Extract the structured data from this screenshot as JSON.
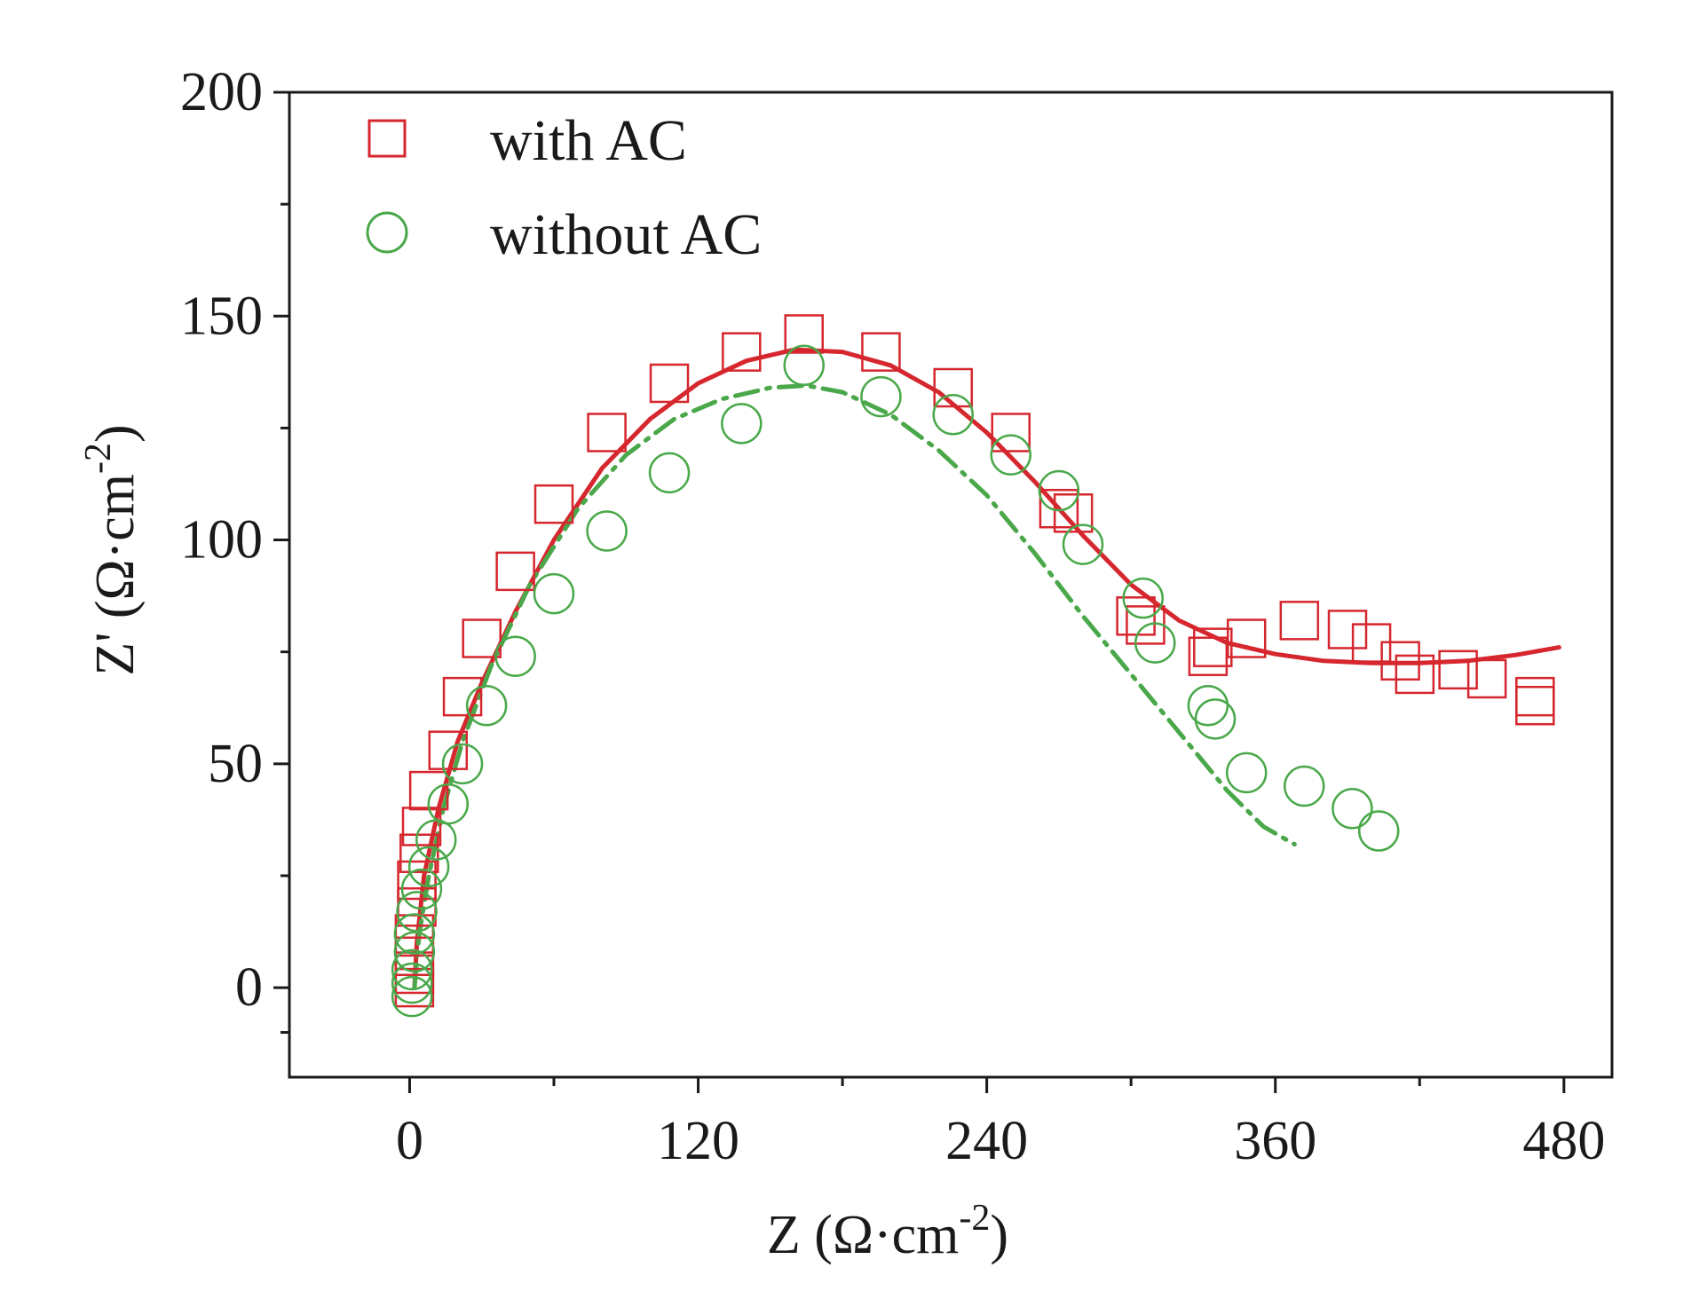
{
  "chart_data": {
    "type": "scatter",
    "title": "",
    "xlabel": "Z (Ω·cm",
    "xlabel_sup": "-2",
    "xlabel_close": ")",
    "ylabel": "Z' (Ω·cm",
    "ylabel_sup": "-2",
    "ylabel_close": ")",
    "xlim": [
      -50,
      500
    ],
    "ylim": [
      -20,
      200
    ],
    "xticks": [
      0,
      120,
      240,
      360,
      480
    ],
    "yticks": [
      0,
      50,
      100,
      150,
      200
    ],
    "xtick_labels": [
      "0",
      "120",
      "240",
      "360",
      "480"
    ],
    "ytick_labels": [
      "0",
      "50",
      "100",
      "150",
      "200"
    ],
    "legend_position": "top-left",
    "series": [
      {
        "name": "with AC",
        "marker": "square",
        "color": "#d6262e",
        "points": [
          [
            2,
            0
          ],
          [
            2,
            3
          ],
          [
            2,
            7
          ],
          [
            2,
            12
          ],
          [
            3,
            18
          ],
          [
            3,
            24
          ],
          [
            4,
            30
          ],
          [
            5,
            36
          ],
          [
            8,
            44
          ],
          [
            16,
            53
          ],
          [
            22,
            65
          ],
          [
            30,
            78
          ],
          [
            44,
            93
          ],
          [
            60,
            108
          ],
          [
            82,
            124
          ],
          [
            108,
            135
          ],
          [
            138,
            142
          ],
          [
            164,
            146
          ],
          [
            196,
            142
          ],
          [
            226,
            134
          ],
          [
            250,
            124
          ],
          [
            270,
            107
          ],
          [
            276,
            106
          ],
          [
            302,
            83
          ],
          [
            306,
            81
          ],
          [
            332,
            74
          ],
          [
            334,
            76
          ],
          [
            348,
            78
          ],
          [
            370,
            82
          ],
          [
            390,
            80
          ],
          [
            400,
            77
          ],
          [
            412,
            73
          ],
          [
            418,
            70
          ],
          [
            436,
            71
          ],
          [
            448,
            69
          ],
          [
            468,
            63
          ],
          [
            468,
            65
          ]
        ]
      },
      {
        "name": "without AC",
        "marker": "circle",
        "color": "#4aa84a",
        "points": [
          [
            1,
            -2
          ],
          [
            1,
            1
          ],
          [
            1,
            4
          ],
          [
            2,
            8
          ],
          [
            2,
            12
          ],
          [
            3,
            17
          ],
          [
            5,
            22
          ],
          [
            8,
            27
          ],
          [
            11,
            33
          ],
          [
            16,
            41
          ],
          [
            22,
            50
          ],
          [
            32,
            63
          ],
          [
            44,
            74
          ],
          [
            60,
            88
          ],
          [
            82,
            102
          ],
          [
            108,
            115
          ],
          [
            138,
            126
          ],
          [
            164,
            139
          ],
          [
            196,
            132
          ],
          [
            226,
            128
          ],
          [
            250,
            119
          ],
          [
            270,
            111
          ],
          [
            280,
            99
          ],
          [
            305,
            87
          ],
          [
            310,
            77
          ],
          [
            332,
            63
          ],
          [
            335,
            60
          ],
          [
            348,
            48
          ],
          [
            372,
            45
          ],
          [
            392,
            40
          ],
          [
            403,
            35
          ]
        ]
      }
    ],
    "fits": [
      {
        "name": "with AC fit",
        "style": "solid",
        "color": "#d6262e",
        "points": [
          [
            2,
            0
          ],
          [
            3,
            10
          ],
          [
            6,
            25
          ],
          [
            12,
            40
          ],
          [
            20,
            55
          ],
          [
            30,
            68
          ],
          [
            44,
            84
          ],
          [
            60,
            100
          ],
          [
            80,
            116
          ],
          [
            100,
            127
          ],
          [
            120,
            135
          ],
          [
            140,
            140
          ],
          [
            160,
            142.5
          ],
          [
            180,
            142
          ],
          [
            200,
            139
          ],
          [
            220,
            133
          ],
          [
            240,
            124
          ],
          [
            260,
            113
          ],
          [
            280,
            101
          ],
          [
            300,
            90
          ],
          [
            320,
            82
          ],
          [
            340,
            77
          ],
          [
            360,
            74.5
          ],
          [
            380,
            73
          ],
          [
            400,
            72.5
          ],
          [
            420,
            72.5
          ],
          [
            440,
            73
          ],
          [
            460,
            74.3
          ],
          [
            478,
            76
          ]
        ]
      },
      {
        "name": "without AC fit",
        "style": "dashdot",
        "color": "#4aa84a",
        "points": [
          [
            2,
            0
          ],
          [
            4,
            12
          ],
          [
            8,
            25
          ],
          [
            14,
            40
          ],
          [
            22,
            55
          ],
          [
            34,
            72
          ],
          [
            50,
            90
          ],
          [
            70,
            107
          ],
          [
            90,
            119
          ],
          [
            110,
            127
          ],
          [
            130,
            131.5
          ],
          [
            150,
            134
          ],
          [
            165,
            134.5
          ],
          [
            180,
            133
          ],
          [
            200,
            128
          ],
          [
            220,
            120
          ],
          [
            240,
            110
          ],
          [
            260,
            97
          ],
          [
            280,
            83
          ],
          [
            300,
            70
          ],
          [
            320,
            57
          ],
          [
            340,
            44
          ],
          [
            355,
            36
          ],
          [
            368,
            32
          ]
        ]
      }
    ]
  }
}
